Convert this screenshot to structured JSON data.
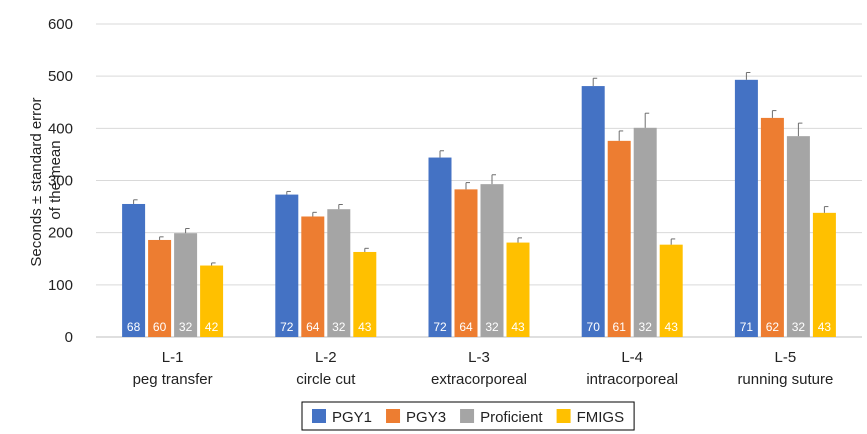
{
  "chart_data": {
    "type": "bar",
    "ylabel": [
      "Seconds ± standard error",
      "of the mean"
    ],
    "ylim": [
      0,
      600
    ],
    "yticks": [
      0,
      100,
      200,
      300,
      400,
      500,
      600
    ],
    "grid": true,
    "legend_position": "bottom",
    "categories": [
      [
        "L-1",
        "peg transfer"
      ],
      [
        "L-2",
        "circle cut"
      ],
      [
        "L-3",
        "extracorporeal"
      ],
      [
        "L-4",
        "intracorporeal"
      ],
      [
        "L-5",
        "running suture"
      ]
    ],
    "series": [
      {
        "name": "PGY1",
        "color": "#4472C4",
        "values": [
          255,
          273,
          344,
          481,
          493
        ],
        "errors": [
          8,
          6,
          13,
          15,
          14
        ],
        "n": [
          "68",
          "72",
          "72",
          "70",
          "71"
        ]
      },
      {
        "name": "PGY3",
        "color": "#ED7D31",
        "values": [
          186,
          231,
          283,
          376,
          420
        ],
        "errors": [
          6,
          8,
          13,
          19,
          14
        ],
        "n": [
          "60",
          "64",
          "64",
          "61",
          "62"
        ]
      },
      {
        "name": "Proficient",
        "color": "#A5A5A5",
        "values": [
          199,
          245,
          293,
          401,
          385
        ],
        "errors": [
          9,
          9,
          18,
          28,
          25
        ],
        "n": [
          "32",
          "32",
          "32",
          "32",
          "32"
        ]
      },
      {
        "name": "FMIGS",
        "color": "#FFC000",
        "values": [
          137,
          163,
          181,
          177,
          238
        ],
        "errors": [
          5,
          7,
          9,
          11,
          12
        ],
        "n": [
          "42",
          "43",
          "43",
          "43",
          "43"
        ]
      }
    ]
  }
}
